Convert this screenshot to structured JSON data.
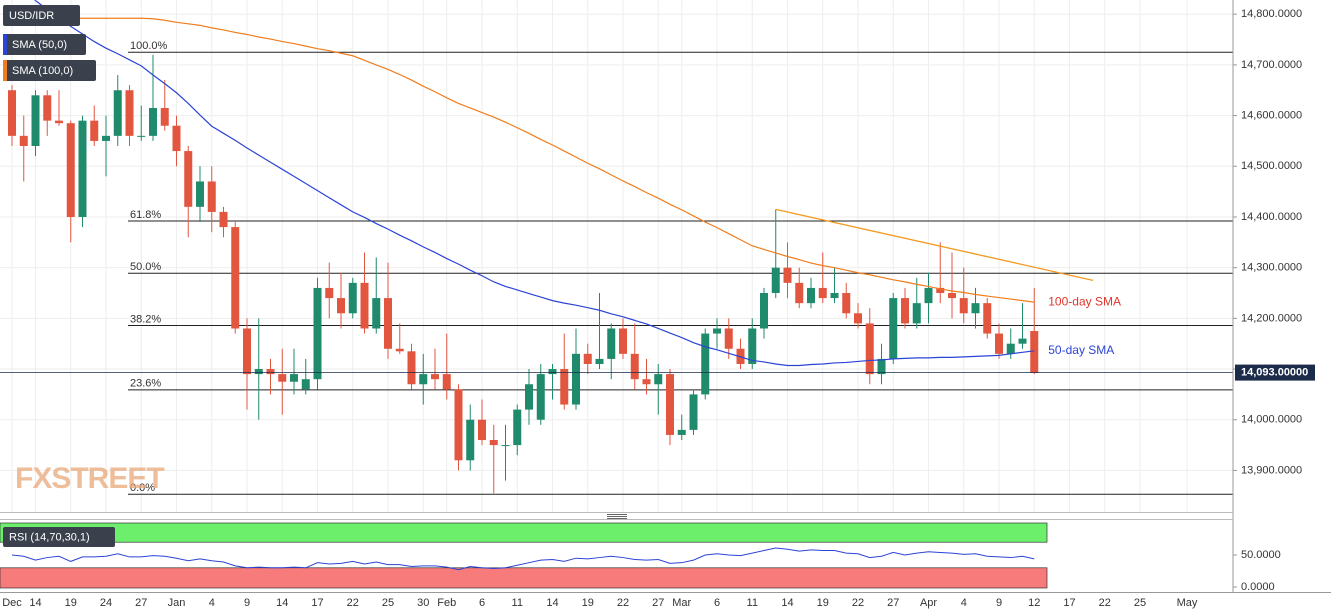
{
  "chart_data": {
    "type": "candlestick",
    "symbol": "USD/IDR",
    "up_color": "#1f8a6c",
    "down_color": "#e2553f",
    "categories": [
      "Dec",
      null,
      "14",
      null,
      null,
      "19",
      null,
      null,
      "24",
      null,
      null,
      "27",
      null,
      null,
      "Jan",
      null,
      null,
      "4",
      null,
      null,
      "9",
      null,
      null,
      "14",
      null,
      null,
      "17",
      null,
      null,
      "22",
      null,
      null,
      "25",
      null,
      null,
      "30",
      null,
      "Feb",
      null,
      null,
      "6",
      null,
      null,
      "11",
      null,
      null,
      "14",
      null,
      null,
      "19",
      null,
      null,
      "22",
      null,
      null,
      "27",
      null,
      "Mar",
      null,
      null,
      "6",
      null,
      null,
      "11",
      null,
      null,
      "14",
      null,
      null,
      "19",
      null,
      null,
      "22",
      null,
      null,
      "27",
      null,
      null,
      "Apr",
      null,
      null,
      "4",
      null,
      null,
      "9",
      null,
      null,
      "12",
      null,
      null,
      "17",
      null,
      null,
      "22",
      null,
      null,
      "25",
      null,
      null,
      null,
      "May"
    ],
    "ohlc": [
      [
        14650,
        14660,
        14540,
        14560
      ],
      [
        14560,
        14600,
        14470,
        14540
      ],
      [
        14540,
        14650,
        14520,
        14640
      ],
      [
        14640,
        14650,
        14560,
        14590
      ],
      [
        14590,
        14650,
        14580,
        14585
      ],
      [
        14585,
        14590,
        14350,
        14400
      ],
      [
        14400,
        14600,
        14380,
        14590
      ],
      [
        14590,
        14620,
        14540,
        14550
      ],
      [
        14550,
        14600,
        14480,
        14560
      ],
      [
        14560,
        14680,
        14540,
        14650
      ],
      [
        14650,
        14660,
        14540,
        14560
      ],
      [
        14560,
        14620,
        14550,
        14560
      ],
      [
        14560,
        14720,
        14550,
        14615
      ],
      [
        14615,
        14670,
        14570,
        14580
      ],
      [
        14580,
        14600,
        14500,
        14530
      ],
      [
        14530,
        14540,
        14360,
        14420
      ],
      [
        14420,
        14500,
        14390,
        14470
      ],
      [
        14470,
        14500,
        14370,
        14410
      ],
      [
        14410,
        14420,
        14360,
        14380
      ],
      [
        14380,
        14390,
        14170,
        14180
      ],
      [
        14180,
        14200,
        14020,
        14090
      ],
      [
        14090,
        14200,
        14000,
        14100
      ],
      [
        14100,
        14120,
        14050,
        14090
      ],
      [
        14090,
        14140,
        14010,
        14075
      ],
      [
        14075,
        14140,
        14050,
        14090
      ],
      [
        14060,
        14120,
        14050,
        14080
      ],
      [
        14080,
        14280,
        14060,
        14260
      ],
      [
        14260,
        14310,
        14200,
        14240
      ],
      [
        14240,
        14290,
        14180,
        14210
      ],
      [
        14210,
        14280,
        14200,
        14270
      ],
      [
        14270,
        14330,
        14170,
        14180
      ],
      [
        14180,
        14320,
        14170,
        14240
      ],
      [
        14240,
        14310,
        14120,
        14140
      ],
      [
        14140,
        14190,
        14130,
        14135
      ],
      [
        14135,
        14150,
        14060,
        14070
      ],
      [
        14070,
        14130,
        14030,
        14090
      ],
      [
        14090,
        14140,
        14060,
        14080
      ],
      [
        14090,
        14170,
        14040,
        14060
      ],
      [
        14060,
        14070,
        13900,
        13920
      ],
      [
        13920,
        14030,
        13900,
        14000
      ],
      [
        14000,
        14040,
        13950,
        13960
      ],
      [
        13960,
        13990,
        13855,
        13950
      ],
      [
        13950,
        13990,
        13880,
        13950
      ],
      [
        13950,
        14030,
        13930,
        14020
      ],
      [
        14020,
        14100,
        13990,
        14070
      ],
      [
        14000,
        14110,
        13990,
        14090
      ],
      [
        14090,
        14110,
        14040,
        14100
      ],
      [
        14100,
        14170,
        14020,
        14030
      ],
      [
        14030,
        14180,
        14020,
        14130
      ],
      [
        14130,
        14150,
        14090,
        14110
      ],
      [
        14110,
        14250,
        14100,
        14120
      ],
      [
        14120,
        14190,
        14080,
        14180
      ],
      [
        14180,
        14200,
        14120,
        14130
      ],
      [
        14130,
        14190,
        14060,
        14080
      ],
      [
        14080,
        14120,
        14050,
        14070
      ],
      [
        14070,
        14110,
        14010,
        14090
      ],
      [
        14090,
        14100,
        13950,
        13970
      ],
      [
        13970,
        14010,
        13960,
        13980
      ],
      [
        13980,
        14060,
        13970,
        14050
      ],
      [
        14050,
        14180,
        14040,
        14170
      ],
      [
        14170,
        14200,
        14140,
        14180
      ],
      [
        14180,
        14200,
        14120,
        14140
      ],
      [
        14140,
        14160,
        14100,
        14110
      ],
      [
        14110,
        14200,
        14100,
        14180
      ],
      [
        14180,
        14260,
        14160,
        14250
      ],
      [
        14250,
        14415,
        14240,
        14300
      ],
      [
        14300,
        14350,
        14240,
        14270
      ],
      [
        14270,
        14300,
        14220,
        14230
      ],
      [
        14230,
        14280,
        14220,
        14260
      ],
      [
        14260,
        14330,
        14230,
        14240
      ],
      [
        14240,
        14300,
        14230,
        14250
      ],
      [
        14250,
        14270,
        14200,
        14210
      ],
      [
        14210,
        14230,
        14180,
        14190
      ],
      [
        14190,
        14220,
        14070,
        14090
      ],
      [
        14090,
        14150,
        14070,
        14120
      ],
      [
        14120,
        14250,
        14110,
        14240
      ],
      [
        14240,
        14260,
        14180,
        14190
      ],
      [
        14190,
        14280,
        14180,
        14230
      ],
      [
        14230,
        14290,
        14190,
        14260
      ],
      [
        14260,
        14350,
        14230,
        14250
      ],
      [
        14250,
        14330,
        14200,
        14240
      ],
      [
        14240,
        14300,
        14190,
        14210
      ],
      [
        14210,
        14260,
        14180,
        14230
      ],
      [
        14230,
        14240,
        14160,
        14170
      ],
      [
        14170,
        14190,
        14120,
        14130
      ],
      [
        14130,
        14180,
        14120,
        14150
      ],
      [
        14150,
        14230,
        14140,
        14160
      ],
      [
        14175,
        14260,
        14090,
        14093
      ],
      null,
      null,
      null,
      null,
      null,
      null,
      null,
      null,
      null,
      null,
      null,
      null,
      null
    ],
    "series": [
      {
        "name": "SMA (50,0)",
        "color": "#2b44d6",
        "annotation": "50-day SMA",
        "values": [
          14870,
          14848,
          14827,
          14809,
          14791,
          14776,
          14761,
          14746,
          14733,
          14722,
          14710,
          14698,
          14680,
          14663,
          14645,
          14624,
          14601,
          14579,
          14565,
          14551,
          14536,
          14522,
          14508,
          14494,
          14480,
          14466,
          14452,
          14438,
          14424,
          14410,
          14399,
          14387,
          14376,
          14364,
          14353,
          14341,
          14330,
          14318,
          14307,
          14295,
          14284,
          14272,
          14263,
          14256,
          14249,
          14242,
          14235,
          14230,
          14226,
          14221,
          14216,
          14209,
          14203,
          14196,
          14189,
          14180,
          14171,
          14162,
          14152,
          14144,
          14138,
          14131,
          14124,
          14117,
          14114,
          14110,
          14107,
          14107,
          14109,
          14110,
          14112,
          14113,
          14115,
          14117,
          14118,
          14120,
          14121,
          14122,
          14122,
          14123,
          14123,
          14124,
          14125,
          14126,
          14127,
          14130,
          14133,
          14136,
          null,
          null,
          null,
          null,
          null,
          null,
          null,
          null,
          null,
          null,
          null,
          null,
          null
        ]
      },
      {
        "name": "SMA (100,0)",
        "color": "#f07d1c",
        "annotation": "100-day SMA",
        "annotation_color": "#e0352b",
        "values": [
          14788,
          14789,
          14790,
          14790,
          14791,
          14791,
          14792,
          14792,
          14792,
          14792,
          14792,
          14792,
          14791,
          14788,
          14784,
          14781,
          14778,
          14773,
          14769,
          14764,
          14760,
          14755,
          14751,
          14746,
          14742,
          14737,
          14732,
          14728,
          14723,
          14718,
          14709,
          14700,
          14691,
          14681,
          14670,
          14658,
          14647,
          14635,
          14624,
          14615,
          14606,
          14597,
          14587,
          14576,
          14565,
          14553,
          14542,
          14530,
          14518,
          14506,
          14495,
          14483,
          14471,
          14460,
          14448,
          14437,
          14425,
          14414,
          14402,
          14390,
          14379,
          14367,
          14355,
          14343,
          14336,
          14329,
          14322,
          14316,
          14309,
          14304,
          14300,
          14295,
          14290,
          14286,
          14281,
          14276,
          14272,
          14267,
          14263,
          14258,
          14254,
          14251,
          14247,
          14244,
          14241,
          14238,
          14235,
          14232,
          null,
          null,
          null,
          null,
          null,
          null,
          null,
          null,
          null,
          null,
          null,
          null,
          null
        ]
      }
    ],
    "ylim": [
      13818,
      14828
    ],
    "yticks": [
      {
        "value": 14800,
        "label": "14,800.0000"
      },
      {
        "value": 14700,
        "label": "14,700.0000"
      },
      {
        "value": 14600,
        "label": "14,600.0000"
      },
      {
        "value": 14500,
        "label": "14,500.0000"
      },
      {
        "value": 14400,
        "label": "14,400.0000"
      },
      {
        "value": 14300,
        "label": "14,300.0000"
      },
      {
        "value": 14200,
        "label": "14,200.0000"
      },
      {
        "value": 14100,
        "label": "14,100.0000"
      },
      {
        "value": 14000,
        "label": "14,000.0000"
      },
      {
        "value": 13900,
        "label": "13,900.0000"
      }
    ],
    "grid": true,
    "fib_levels": [
      {
        "value": 14725,
        "label": "100.0%"
      },
      {
        "value": 14392,
        "label": "61.8%"
      },
      {
        "value": 14289,
        "label": "50.0%"
      },
      {
        "value": 14186,
        "label": "38.2%"
      },
      {
        "value": 14059,
        "label": "23.6%"
      },
      {
        "value": 13853,
        "label": "0.0%"
      }
    ],
    "trendline": {
      "color": "#f39a1e",
      "values": [
        14415,
        14275
      ]
    },
    "last_price": {
      "value": 14093,
      "label": "14,093.00000",
      "color": "#1c2b4a"
    },
    "watermark": "FXSTREET",
    "rsi": {
      "label": "RSI (14,70,30,1)",
      "color": "#2b44d6",
      "upper": 70,
      "lower": 30,
      "upper_color": "#6cf06c",
      "lower_color": "#f77b7b",
      "ylim": [
        0,
        100
      ],
      "yticks": [
        {
          "value": 50,
          "label": "50.0000"
        },
        {
          "value": 0,
          "label": "0.0000"
        }
      ],
      "values": [
        50,
        48,
        42,
        46,
        48,
        40,
        47,
        47,
        48,
        52,
        47,
        47,
        49,
        48,
        45,
        41,
        44,
        41,
        39,
        33,
        30,
        31,
        30,
        30,
        31,
        30,
        38,
        36,
        37,
        40,
        36,
        39,
        35,
        35,
        32,
        33,
        33,
        31,
        27,
        32,
        30,
        29,
        30,
        34,
        38,
        42,
        43,
        40,
        45,
        44,
        46,
        48,
        46,
        43,
        42,
        43,
        37,
        38,
        42,
        50,
        52,
        50,
        49,
        53,
        57,
        61,
        59,
        56,
        58,
        57,
        57,
        53,
        52,
        46,
        48,
        54,
        50,
        53,
        55,
        54,
        53,
        51,
        52,
        48,
        47,
        46,
        48,
        44,
        null,
        null,
        null,
        null,
        null,
        null,
        null,
        null,
        null,
        null,
        null,
        null,
        null
      ]
    }
  }
}
